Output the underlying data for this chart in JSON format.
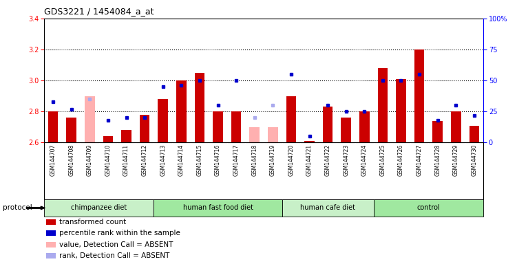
{
  "title": "GDS3221 / 1454084_a_at",
  "samples": [
    "GSM144707",
    "GSM144708",
    "GSM144709",
    "GSM144710",
    "GSM144711",
    "GSM144712",
    "GSM144713",
    "GSM144714",
    "GSM144715",
    "GSM144716",
    "GSM144717",
    "GSM144718",
    "GSM144719",
    "GSM144720",
    "GSM144721",
    "GSM144722",
    "GSM144723",
    "GSM144724",
    "GSM144725",
    "GSM144726",
    "GSM144727",
    "GSM144728",
    "GSM144729",
    "GSM144730"
  ],
  "red_values": [
    2.8,
    2.76,
    null,
    2.64,
    2.68,
    2.78,
    2.88,
    3.0,
    3.05,
    2.8,
    2.8,
    null,
    null,
    2.9,
    2.61,
    2.83,
    2.76,
    2.8,
    3.08,
    3.01,
    3.2,
    2.74,
    2.8,
    2.71
  ],
  "pink_values": [
    null,
    null,
    2.9,
    null,
    null,
    null,
    null,
    null,
    null,
    null,
    null,
    2.7,
    2.7,
    null,
    null,
    null,
    null,
    null,
    null,
    null,
    null,
    null,
    null,
    null
  ],
  "blue_values": [
    33,
    27,
    null,
    18,
    20,
    20,
    45,
    46,
    50,
    30,
    50,
    null,
    null,
    55,
    5,
    30,
    25,
    25,
    50,
    50,
    55,
    18,
    30,
    22
  ],
  "light_blue_values": [
    null,
    null,
    35,
    null,
    null,
    null,
    null,
    null,
    null,
    null,
    null,
    20,
    30,
    null,
    null,
    null,
    null,
    null,
    null,
    null,
    null,
    null,
    null,
    null
  ],
  "groups": [
    {
      "label": "chimpanzee diet",
      "start": 0,
      "end": 6,
      "color": "#c8f0c8"
    },
    {
      "label": "human fast food diet",
      "start": 6,
      "end": 13,
      "color": "#a0e8a0"
    },
    {
      "label": "human cafe diet",
      "start": 13,
      "end": 18,
      "color": "#c8f0c8"
    },
    {
      "label": "control",
      "start": 18,
      "end": 24,
      "color": "#a0e8a0"
    }
  ],
  "ylim_left": [
    2.6,
    3.4
  ],
  "ylim_right": [
    0,
    100
  ],
  "yticks_left": [
    2.6,
    2.8,
    3.0,
    3.2,
    3.4
  ],
  "yticks_right": [
    0,
    25,
    50,
    75,
    100
  ],
  "grid_lines": [
    2.8,
    3.0,
    3.2
  ],
  "bar_width": 0.55,
  "bar_color_red": "#cc0000",
  "bar_color_pink": "#ffb0b0",
  "dot_color_blue": "#0000cc",
  "dot_color_lightblue": "#aaaaee",
  "plot_bg_color": "#ffffff",
  "xtick_bg_color": "#d8d8d8",
  "legend_items": [
    {
      "label": "transformed count",
      "color": "#cc0000"
    },
    {
      "label": "percentile rank within the sample",
      "color": "#0000cc"
    },
    {
      "label": "value, Detection Call = ABSENT",
      "color": "#ffb0b0"
    },
    {
      "label": "rank, Detection Call = ABSENT",
      "color": "#aaaaee"
    }
  ]
}
